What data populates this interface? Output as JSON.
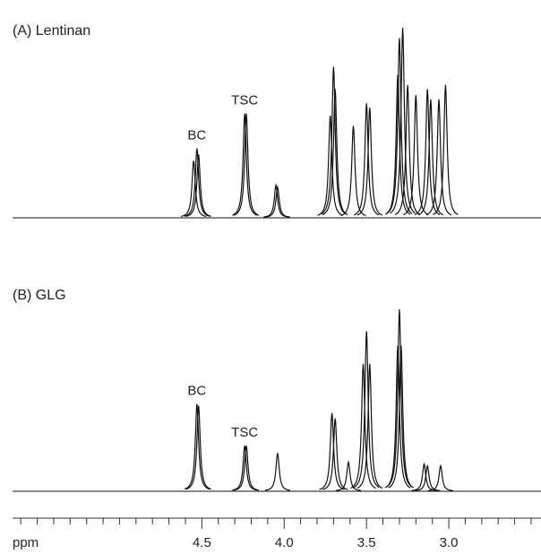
{
  "chart_data": [
    {
      "type": "spectrum",
      "title": "(A) Lentinan",
      "xlim": [
        5.65,
        2.44
      ],
      "x": [
        4.55,
        4.53,
        4.52,
        4.24,
        4.23,
        4.05,
        4.04,
        3.72,
        3.7,
        3.69,
        3.58,
        3.5,
        3.48,
        3.31,
        3.3,
        3.28,
        3.25,
        3.2,
        3.13,
        3.11,
        3.06,
        3.02
      ],
      "values": [
        28,
        34,
        31,
        51,
        51,
        16,
        15,
        50,
        74,
        63,
        45,
        56,
        54,
        70,
        88,
        93,
        65,
        60,
        63,
        58,
        58,
        65
      ],
      "annotations": [
        {
          "text": "BC",
          "x": 4.53
        },
        {
          "text": "TSC",
          "x": 4.24
        }
      ],
      "color": "#111"
    },
    {
      "type": "spectrum",
      "title": "(B) GLG",
      "xlim": [
        5.65,
        2.44
      ],
      "x": [
        4.53,
        4.52,
        4.24,
        4.23,
        4.04,
        3.71,
        3.69,
        3.61,
        3.52,
        3.5,
        3.48,
        3.31,
        3.3,
        3.29,
        3.15,
        3.13,
        3.05
      ],
      "values": [
        48,
        47,
        25,
        25,
        21,
        43,
        40,
        16,
        70,
        88,
        70,
        80,
        100,
        80,
        15,
        14,
        14
      ],
      "annotations": [
        {
          "text": "BC",
          "x": 4.53
        },
        {
          "text": "TSC",
          "x": 4.24
        }
      ],
      "color": "#111",
      "xlabel": "ppm",
      "xticks": [
        4.5,
        {
          "value": 4,
          "label": "4.0"
        },
        3.5,
        {
          "value": 3,
          "label": "3.0"
        }
      ],
      "xminorticks": [
        5.6,
        5.5,
        5.4,
        5.3,
        5.2,
        5.1,
        5.0,
        4.9,
        4.8,
        4.7,
        4.6,
        4.4,
        4.3,
        4.2,
        4.1,
        3.9,
        3.8,
        3.7,
        3.6,
        3.4,
        3.3,
        3.2,
        3.1,
        2.9,
        2.8,
        2.7,
        2.6,
        2.5
      ]
    }
  ]
}
